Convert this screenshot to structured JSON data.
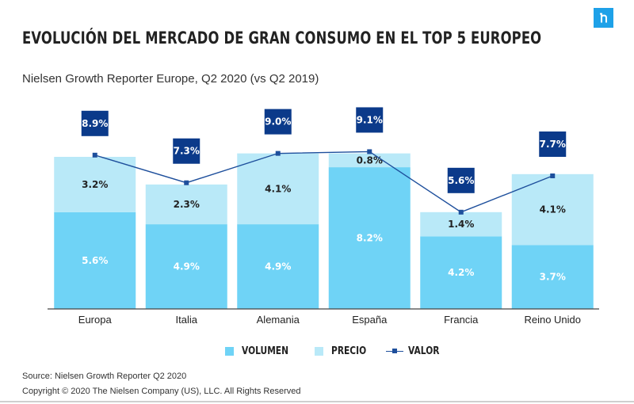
{
  "title": "EVOLUCIÓN DEL MERCADO DE GRAN CONSUMO EN EL TOP 5 EUROPEO",
  "subtitle": "Nielsen Growth Reporter Europe, Q2 2020 (vs Q2 2019)",
  "logo": {
    "icon": "nielsen-n-logo",
    "color": "#1ea1e8"
  },
  "colors": {
    "volumen": "#6fd3f6",
    "precio": "#b9e9f8",
    "valor_line": "#1e4f9c",
    "valor_box": "#0b3a8a",
    "axis": "#444444"
  },
  "chart_data": {
    "type": "bar",
    "stacked": true,
    "categories": [
      "Europa",
      "Italia",
      "Alemania",
      "España",
      "Francia",
      "Reino Unido"
    ],
    "series": [
      {
        "name": "VOLUMEN",
        "values": [
          5.6,
          4.9,
          4.9,
          8.2,
          4.2,
          3.7
        ],
        "labels": [
          "5.6%",
          "4.9%",
          "4.9%",
          "8.2%",
          "4.2%",
          "3.7%"
        ]
      },
      {
        "name": "PRECIO",
        "values": [
          3.2,
          2.3,
          4.1,
          0.8,
          1.4,
          4.1
        ],
        "labels": [
          "3.2%",
          "2.3%",
          "4.1%",
          "0.8%",
          "1.4%",
          "4.1%"
        ]
      },
      {
        "name": "VALOR",
        "type": "line",
        "values": [
          8.9,
          7.3,
          9.0,
          9.1,
          5.6,
          7.7
        ],
        "labels": [
          "8.9%",
          "7.3%",
          "9.0%",
          "9.1%",
          "5.6%",
          "7.7%"
        ]
      }
    ],
    "ylim": [
      0,
      11.0
    ],
    "grid": false,
    "legend_position": "bottom"
  },
  "legend": [
    {
      "label": "VOLUMEN",
      "kind": "square",
      "color": "#6fd3f6"
    },
    {
      "label": "PRECIO",
      "kind": "square",
      "color": "#b9e9f8"
    },
    {
      "label": "VALOR",
      "kind": "line",
      "color": "#1e4f9c"
    }
  ],
  "source": "Source: Nielsen Growth Reporter Q2 2020",
  "copyright": "Copyright © 2020 The Nielsen Company (US), LLC. All Rights Reserved"
}
